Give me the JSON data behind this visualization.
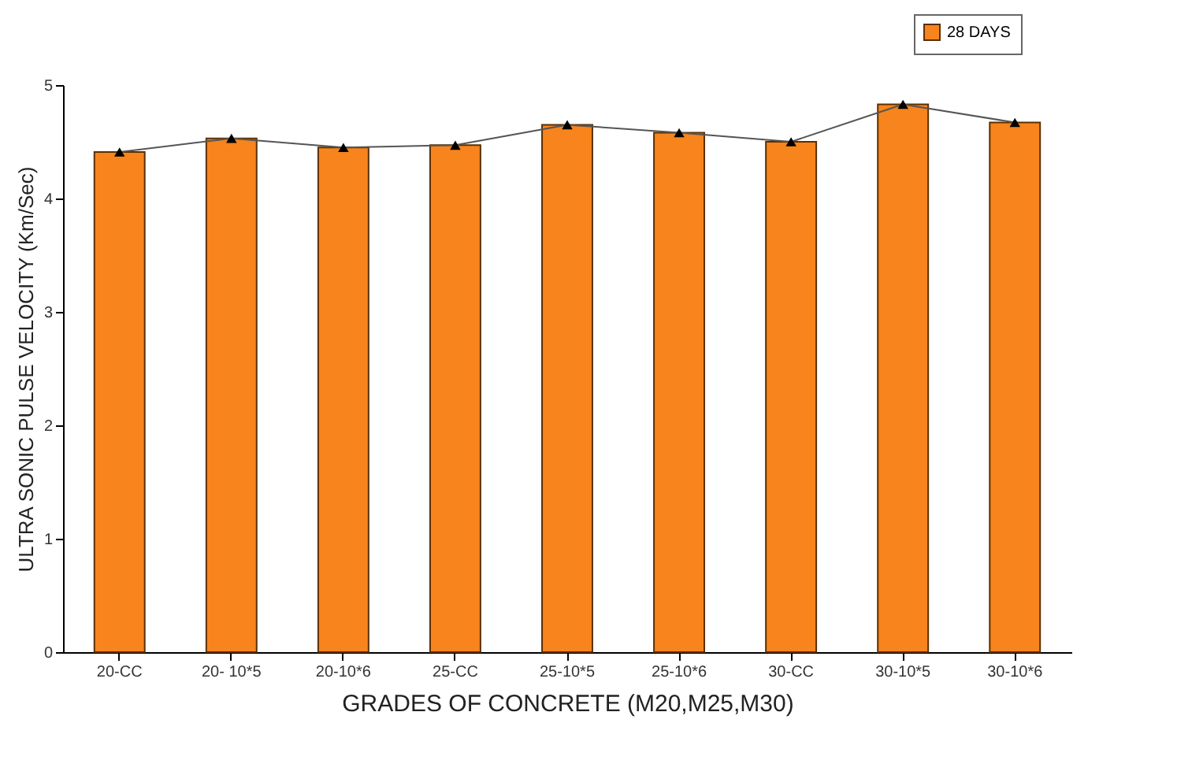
{
  "chart_data": {
    "type": "bar",
    "xlabel": "GRADES OF  CONCRETE (M20,M25,M30)",
    "ylabel": "ULTRA SONIC PULSE VELOCITY (Km/Sec)",
    "categories": [
      "20-CC",
      "20- 10*5",
      "20-10*6",
      "25-CC",
      "25-10*5",
      "25-10*6",
      "30-CC",
      "30-10*5",
      "30-10*6"
    ],
    "series": [
      {
        "name": "28 DAYS",
        "color": "#f7841c",
        "values": [
          4.41,
          4.53,
          4.45,
          4.47,
          4.65,
          4.58,
          4.5,
          4.83,
          4.67
        ]
      },
      {
        "type": "line",
        "color": "#555555",
        "marker": "triangle",
        "values": [
          4.41,
          4.53,
          4.45,
          4.47,
          4.65,
          4.58,
          4.5,
          4.83,
          4.67
        ]
      }
    ],
    "ylim": [
      0,
      5
    ],
    "yticks": [
      0,
      1,
      2,
      3,
      4,
      5
    ],
    "grid": false,
    "legend": "top right"
  }
}
